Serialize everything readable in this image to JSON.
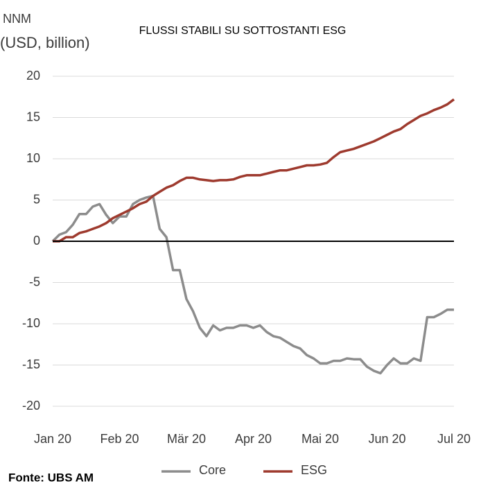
{
  "chart_data": {
    "type": "line",
    "title": "FLUSSI STABILI SU SOTTOSTANTI ESG",
    "ylabel": [
      "NNM",
      "(USD, billion)"
    ],
    "source": "Fonte: UBS AM",
    "categories": [
      "Jan 20",
      null,
      null,
      null,
      null,
      null,
      null,
      null,
      null,
      null,
      "Feb 20",
      null,
      null,
      null,
      null,
      null,
      null,
      null,
      null,
      null,
      "Mär 20",
      null,
      null,
      null,
      null,
      null,
      null,
      null,
      null,
      null,
      "Apr 20",
      null,
      null,
      null,
      null,
      null,
      null,
      null,
      null,
      null,
      "Mai 20",
      null,
      null,
      null,
      null,
      null,
      null,
      null,
      null,
      null,
      "Jun 20",
      null,
      null,
      null,
      null,
      null,
      null,
      null,
      null,
      null,
      "Jul 20"
    ],
    "series": [
      {
        "name": "Core",
        "color": "#8c8c8c",
        "values": [
          0,
          0.8,
          1.1,
          2,
          3.3,
          3.3,
          4.2,
          4.5,
          3.2,
          2.2,
          3,
          3,
          4.5,
          5,
          5.3,
          5.5,
          1.5,
          0.5,
          -3.5,
          -3.5,
          -7,
          -8.5,
          -10.5,
          -11.5,
          -10.2,
          -10.8,
          -10.5,
          -10.5,
          -10.2,
          -10.2,
          -10.5,
          -10.2,
          -11,
          -11.5,
          -11.7,
          -12.2,
          -12.7,
          -13,
          -13.8,
          -14.2,
          -14.8,
          -14.8,
          -14.5,
          -14.5,
          -14.2,
          -14.3,
          -14.3,
          -15.2,
          -15.7,
          -16,
          -15,
          -14.2,
          -14.8,
          -14.8,
          -14.2,
          -14.5,
          -9.2,
          -9.2,
          -8.8,
          -8.3,
          -8.3
        ]
      },
      {
        "name": "ESG",
        "color": "#9e3a2e",
        "values": [
          0,
          0,
          0.5,
          0.5,
          1,
          1.2,
          1.5,
          1.8,
          2.2,
          2.8,
          3.2,
          3.6,
          4,
          4.5,
          4.8,
          5.5,
          6,
          6.5,
          6.8,
          7.3,
          7.7,
          7.7,
          7.5,
          7.4,
          7.3,
          7.4,
          7.4,
          7.5,
          7.8,
          8,
          8,
          8,
          8.2,
          8.4,
          8.6,
          8.6,
          8.8,
          9,
          9.2,
          9.2,
          9.3,
          9.5,
          10.2,
          10.8,
          11,
          11.2,
          11.5,
          11.8,
          12.1,
          12.5,
          12.9,
          13.3,
          13.6,
          14.2,
          14.7,
          15.2,
          15.5,
          15.9,
          16.2,
          16.6,
          17.2
        ]
      }
    ],
    "ylim": [
      -20,
      20
    ],
    "yticks": [
      -20,
      -15,
      -10,
      -5,
      0,
      5,
      10,
      15,
      20
    ],
    "grid": true,
    "zero_line": true,
    "legend": "bottom"
  }
}
